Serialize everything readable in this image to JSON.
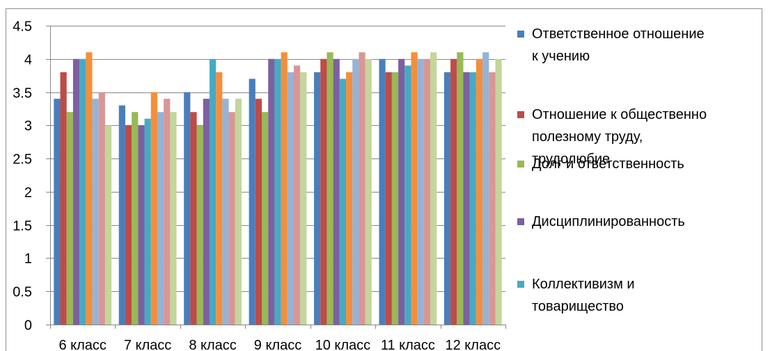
{
  "chart_data": {
    "type": "bar",
    "categories": [
      "6 класс",
      "7 класс",
      "8 класс",
      "9 класс",
      "10 класс",
      "11 класс",
      "12 класс"
    ],
    "ylim": [
      0,
      4.5
    ],
    "yticks": [
      "0",
      "0.5",
      "1",
      "1.5",
      "2",
      "2.5",
      "3",
      "3.5",
      "4",
      "4.5"
    ],
    "grid": true,
    "legend_position": "right",
    "series": [
      {
        "name": "Ответственное отношение к учению",
        "name_lines": [
          "Ответственное отношение",
          "к учению"
        ],
        "color": "#4a7ebb",
        "values": [
          3.4,
          3.3,
          3.5,
          3.7,
          3.8,
          4.0,
          3.8
        ]
      },
      {
        "name": "Отношение к общественно полезному труду, трудолюбие",
        "name_lines": [
          "Отношение к общественно",
          "полезному труду,",
          "трудолюбие"
        ],
        "color": "#be4b48",
        "values": [
          3.8,
          3.0,
          3.2,
          3.4,
          4.0,
          3.8,
          4.0
        ]
      },
      {
        "name": "Долг и ответственность",
        "name_lines": [
          "Долг и ответственность"
        ],
        "color": "#98b954",
        "values": [
          3.2,
          3.2,
          3.0,
          3.2,
          4.1,
          3.8,
          4.1
        ]
      },
      {
        "name": "Дисциплинированность",
        "name_lines": [
          "Дисциплинированность"
        ],
        "color": "#7d60a0",
        "values": [
          4.0,
          3.0,
          3.4,
          4.0,
          4.0,
          4.0,
          3.8
        ]
      },
      {
        "name": "Коллективизм и товарищество",
        "name_lines": [
          "Коллективизм и",
          "товарищество"
        ],
        "color": "#46aac4",
        "values": [
          4.0,
          3.1,
          4.0,
          4.0,
          3.7,
          3.9,
          3.8
        ]
      },
      {
        "name": "",
        "name_lines": [],
        "color": "#f38f3c",
        "values": [
          4.1,
          3.5,
          3.8,
          4.1,
          3.8,
          4.1,
          4.0
        ]
      },
      {
        "name": "",
        "name_lines": [],
        "color": "#95b3d7",
        "values": [
          3.4,
          3.2,
          3.4,
          3.8,
          4.0,
          4.0,
          4.1
        ]
      },
      {
        "name": "",
        "name_lines": [],
        "color": "#d99694",
        "values": [
          3.5,
          3.4,
          3.2,
          3.9,
          4.1,
          4.0,
          3.8
        ]
      },
      {
        "name": "",
        "name_lines": [],
        "color": "#c3d69b",
        "values": [
          3.0,
          3.2,
          3.4,
          3.8,
          4.0,
          4.1,
          4.0
        ]
      }
    ]
  }
}
